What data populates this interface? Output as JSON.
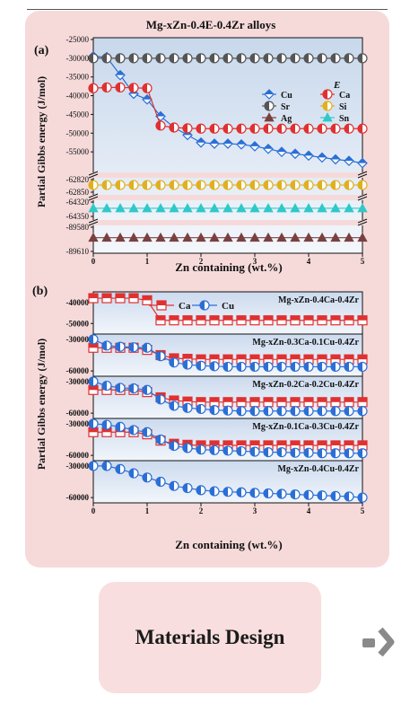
{
  "figure": {
    "title": "Mg-xZn-0.4E-0.4Zr alloys",
    "ylabel": "Partial Gibbs energy (J/mol)",
    "xlabel": "Zn containing (wt.%)",
    "panel_a_label": "(a)",
    "panel_b_label": "(b)",
    "legend_a_title": "E"
  },
  "card": {
    "label": "Materials Design"
  },
  "chart_data": [
    {
      "type": "line",
      "panel": "(a)",
      "title": "Mg-xZn-0.4E-0.4Zr alloys",
      "xlabel": "Zn containing (wt.%)",
      "ylabel": "Partial Gibbs energy (J/mol)",
      "xlim": [
        0,
        5
      ],
      "x_ticks": [
        "0",
        "1",
        "2",
        "3",
        "4",
        "5"
      ],
      "y_ticks": [
        "-25000",
        "-30000",
        "-35000",
        "-40000",
        "-45000",
        "-50000",
        "-55000",
        "-62820",
        "-62850",
        "-64320",
        "-64350",
        "-89580",
        "-89610"
      ],
      "legend": "top-right",
      "legend_title": "E",
      "series": [
        {
          "name": "Cu",
          "color": "#2b6fd6",
          "marker": "diamond",
          "x": [
            0,
            0.25,
            0.5,
            0.75,
            1.0,
            1.25,
            1.5,
            1.75,
            2.0,
            2.25,
            2.5,
            2.75,
            3.0,
            3.25,
            3.5,
            3.75,
            4.0,
            4.25,
            4.5,
            4.75,
            5.0
          ],
          "y": [
            -29500,
            -29700,
            -34500,
            -39500,
            -41000,
            -45500,
            -48500,
            -50500,
            -52500,
            -52800,
            -52800,
            -53000,
            -53500,
            -54200,
            -55000,
            -55500,
            -56000,
            -56500,
            -57000,
            -57400,
            -58000
          ]
        },
        {
          "name": "Ca",
          "color": "#e03030",
          "marker": "circle",
          "x": [
            0,
            0.25,
            0.5,
            0.75,
            1.0,
            1.25,
            1.5,
            1.75,
            2.0,
            2.25,
            2.5,
            2.75,
            3.0,
            3.25,
            3.5,
            3.75,
            4.0,
            4.25,
            4.5,
            4.75,
            5.0
          ],
          "y": [
            -38000,
            -37800,
            -37800,
            -37900,
            -38000,
            -48000,
            -48500,
            -48700,
            -48800,
            -48800,
            -48800,
            -48800,
            -48800,
            -48800,
            -48800,
            -48800,
            -48800,
            -48800,
            -48800,
            -48800,
            -48800
          ]
        },
        {
          "name": "Sr",
          "color": "#555555",
          "marker": "circle",
          "x": [
            0,
            0.25,
            0.5,
            0.75,
            1.0,
            1.25,
            1.5,
            1.75,
            2.0,
            2.25,
            2.5,
            2.75,
            3.0,
            3.25,
            3.5,
            3.75,
            4.0,
            4.25,
            4.5,
            4.75,
            5.0
          ],
          "y": [
            -30000,
            -30000,
            -30000,
            -30000,
            -30000,
            -30000,
            -30000,
            -30000,
            -30000,
            -30000,
            -30000,
            -30000,
            -30000,
            -30000,
            -30000,
            -30000,
            -30000,
            -30000,
            -30000,
            -30000,
            -30000
          ]
        },
        {
          "name": "Si",
          "color": "#e0b020",
          "marker": "circle",
          "x": [
            0,
            0.25,
            0.5,
            0.75,
            1.0,
            1.25,
            1.5,
            1.75,
            2.0,
            2.25,
            2.5,
            2.75,
            3.0,
            3.25,
            3.5,
            3.75,
            4.0,
            4.25,
            4.5,
            4.75,
            5.0
          ],
          "y": [
            -62833,
            -62833,
            -62833,
            -62833,
            -62833,
            -62833,
            -62833,
            -62833,
            -62833,
            -62833,
            -62833,
            -62833,
            -62833,
            -62833,
            -62833,
            -62833,
            -62833,
            -62833,
            -62833,
            -62833,
            -62833
          ]
        },
        {
          "name": "Ag",
          "color": "#7a4040",
          "marker": "triangle",
          "x": [
            0,
            0.25,
            0.5,
            0.75,
            1.0,
            1.25,
            1.5,
            1.75,
            2.0,
            2.25,
            2.5,
            2.75,
            3.0,
            3.25,
            3.5,
            3.75,
            4.0,
            4.25,
            4.5,
            4.75,
            5.0
          ],
          "y": [
            -89593,
            -89593,
            -89593,
            -89593,
            -89593,
            -89593,
            -89593,
            -89593,
            -89593,
            -89593,
            -89593,
            -89593,
            -89593,
            -89593,
            -89593,
            -89593,
            -89593,
            -89593,
            -89593,
            -89593,
            -89593
          ]
        },
        {
          "name": "Sn",
          "color": "#30c8c8",
          "marker": "triangle",
          "x": [
            0,
            0.25,
            0.5,
            0.75,
            1.0,
            1.25,
            1.5,
            1.75,
            2.0,
            2.25,
            2.5,
            2.75,
            3.0,
            3.25,
            3.5,
            3.75,
            4.0,
            4.25,
            4.5,
            4.75,
            5.0
          ],
          "y": [
            -64333,
            -64333,
            -64333,
            -64333,
            -64333,
            -64333,
            -64333,
            -64333,
            -64333,
            -64333,
            -64333,
            -64333,
            -64333,
            -64333,
            -64333,
            -64333,
            -64333,
            -64333,
            -64333,
            -64333,
            -64333
          ]
        }
      ]
    },
    {
      "type": "line",
      "panel": "(b)",
      "xlabel": "Zn containing (wt.%)",
      "ylabel": "Partial Gibbs energy (J/mol)",
      "xlim": [
        0,
        5
      ],
      "x_ticks": [
        "0",
        "1",
        "2",
        "3",
        "4",
        "5"
      ],
      "legend_series": [
        "Ca",
        "Cu"
      ],
      "subplots": [
        {
          "label": "Mg-xZn-0.4Ca-0.4Zr",
          "ylim": [
            -55000,
            -35000
          ],
          "y_ticks": [
            "-40000",
            "-50000"
          ],
          "series": [
            {
              "name": "Ca",
              "color": "#e03030",
              "x": [
                0,
                0.25,
                0.5,
                0.75,
                1.0,
                1.25,
                1.5,
                1.75,
                2.0,
                2.25,
                2.5,
                2.75,
                3.0,
                3.25,
                3.5,
                3.75,
                4.0,
                4.25,
                4.5,
                4.75,
                5.0
              ],
              "y": [
                -38000,
                -38000,
                -38000,
                -38000,
                -39000,
                -48500,
                -48500,
                -48500,
                -48500,
                -48500,
                -48500,
                -48500,
                -48500,
                -48500,
                -48500,
                -48500,
                -48500,
                -48500,
                -48500,
                -48500,
                -48500
              ]
            }
          ]
        },
        {
          "label": "Mg-xZn-0.3Ca-0.1Cu-0.4Zr",
          "ylim": [
            -65000,
            -25000
          ],
          "y_ticks": [
            "-30000",
            "-60000"
          ],
          "series": [
            {
              "name": "Ca",
              "color": "#e03030",
              "x": [
                0,
                0.25,
                0.5,
                0.75,
                1.0,
                1.25,
                1.5,
                1.75,
                2.0,
                2.25,
                2.5,
                2.75,
                3.0,
                3.25,
                3.5,
                3.75,
                4.0,
                4.25,
                4.5,
                4.75,
                5.0
              ],
              "y": [
                -38000,
                -38000,
                -38000,
                -38000,
                -40000,
                -45000,
                -48000,
                -48500,
                -49000,
                -49000,
                -49000,
                -49000,
                -49000,
                -49000,
                -49000,
                -49000,
                -49000,
                -49000,
                -49000,
                -49000,
                -49000
              ]
            },
            {
              "name": "Cu",
              "color": "#2b6fd6",
              "x": [
                0,
                0.25,
                0.5,
                0.75,
                1.0,
                1.25,
                1.5,
                1.75,
                2.0,
                2.25,
                2.5,
                2.75,
                3.0,
                3.25,
                3.5,
                3.75,
                4.0,
                4.25,
                4.5,
                4.75,
                5.0
              ],
              "y": [
                -30000,
                -36000,
                -37000,
                -37500,
                -38000,
                -46000,
                -52000,
                -54000,
                -55000,
                -55500,
                -56000,
                -56000,
                -56000,
                -56000,
                -56000,
                -56000,
                -56000,
                -56000,
                -56000,
                -56000,
                -56000
              ]
            }
          ]
        },
        {
          "label": "Mg-xZn-0.2Ca-0.2Cu-0.4Zr",
          "ylim": [
            -65000,
            -25000
          ],
          "y_ticks": [
            "-30000",
            "-60000"
          ],
          "series": [
            {
              "name": "Ca",
              "color": "#e03030",
              "x": [
                0,
                0.25,
                0.5,
                0.75,
                1.0,
                1.25,
                1.5,
                1.75,
                2.0,
                2.25,
                2.5,
                2.75,
                3.0,
                3.25,
                3.5,
                3.75,
                4.0,
                4.25,
                4.5,
                4.75,
                5.0
              ],
              "y": [
                -38000,
                -38000,
                -38000,
                -38000,
                -40000,
                -45000,
                -48000,
                -49000,
                -49500,
                -49500,
                -49500,
                -49500,
                -49500,
                -49500,
                -49500,
                -49500,
                -49500,
                -49500,
                -49500,
                -49500,
                -49500
              ]
            },
            {
              "name": "Cu",
              "color": "#2b6fd6",
              "x": [
                0,
                0.25,
                0.5,
                0.75,
                1.0,
                1.25,
                1.5,
                1.75,
                2.0,
                2.25,
                2.5,
                2.75,
                3.0,
                3.25,
                3.5,
                3.75,
                4.0,
                4.25,
                4.5,
                4.75,
                5.0
              ],
              "y": [
                -30000,
                -34000,
                -36000,
                -36500,
                -38000,
                -47000,
                -53000,
                -55000,
                -56000,
                -57000,
                -57500,
                -58000,
                -58000,
                -58000,
                -58000,
                -58000,
                -58000,
                -58000,
                -58000,
                -58000,
                -58000
              ]
            }
          ]
        },
        {
          "label": "Mg-xZn-0.1Ca-0.3Cu-0.4Zr",
          "ylim": [
            -65000,
            -25000
          ],
          "y_ticks": [
            "-30000",
            "-60000"
          ],
          "series": [
            {
              "name": "Ca",
              "color": "#e03030",
              "x": [
                0,
                0.25,
                0.5,
                0.75,
                1.0,
                1.25,
                1.5,
                1.75,
                2.0,
                2.25,
                2.5,
                2.75,
                3.0,
                3.25,
                3.5,
                3.75,
                4.0,
                4.25,
                4.5,
                4.75,
                5.0
              ],
              "y": [
                -38000,
                -38000,
                -38000,
                -38000,
                -40000,
                -46000,
                -49000,
                -50000,
                -50500,
                -50500,
                -50500,
                -50500,
                -50500,
                -50500,
                -50500,
                -50500,
                -50500,
                -50500,
                -50500,
                -50500,
                -50500
              ]
            },
            {
              "name": "Cu",
              "color": "#2b6fd6",
              "x": [
                0,
                0.25,
                0.5,
                0.75,
                1.0,
                1.25,
                1.5,
                1.75,
                2.0,
                2.25,
                2.5,
                2.75,
                3.0,
                3.25,
                3.5,
                3.75,
                4.0,
                4.25,
                4.5,
                4.75,
                5.0
              ],
              "y": [
                -30000,
                -31000,
                -33000,
                -36000,
                -38000,
                -45000,
                -51000,
                -53000,
                -54500,
                -55000,
                -55500,
                -56000,
                -56500,
                -57000,
                -57000,
                -57500,
                -57500,
                -58000,
                -58000,
                -58000,
                -58000
              ]
            }
          ]
        },
        {
          "label": "Mg-xZn-0.4Cu-0.4Zr",
          "ylim": [
            -65000,
            -25000
          ],
          "y_ticks": [
            "-30000",
            "-60000"
          ],
          "series": [
            {
              "name": "Cu",
              "color": "#2b6fd6",
              "x": [
                0,
                0.25,
                0.5,
                0.75,
                1.0,
                1.25,
                1.5,
                1.75,
                2.0,
                2.25,
                2.5,
                2.75,
                3.0,
                3.25,
                3.5,
                3.75,
                4.0,
                4.25,
                4.5,
                4.75,
                5.0
              ],
              "y": [
                -30000,
                -30000,
                -33000,
                -37000,
                -41000,
                -45000,
                -49000,
                -51000,
                -53000,
                -54000,
                -54500,
                -55000,
                -55500,
                -56000,
                -56500,
                -57000,
                -57500,
                -58000,
                -58500,
                -59000,
                -60000
              ]
            }
          ]
        }
      ]
    }
  ]
}
